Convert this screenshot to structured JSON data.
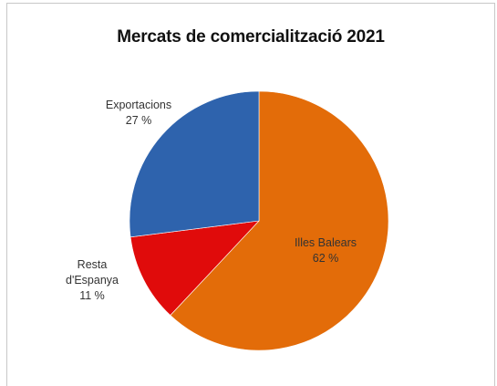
{
  "chart_data": {
    "type": "pie",
    "title": "Mercats de comercialització  2021",
    "unit": "%",
    "slices": [
      {
        "name": "Illes Balears",
        "value": 62,
        "label_lines": [
          "Illes Balears",
          "62 %"
        ],
        "color": "#e36c09"
      },
      {
        "name": "Resta d'Espanya",
        "value": 11,
        "label_lines": [
          "Resta",
          "d'Espanya",
          "11 %"
        ],
        "color": "#e00b0b"
      },
      {
        "name": "Exportacions",
        "value": 27,
        "label_lines": [
          "Exportacions",
          "27 %"
        ],
        "color": "#2e63ad"
      }
    ],
    "start_angle_deg": 0,
    "direction": "clockwise"
  }
}
